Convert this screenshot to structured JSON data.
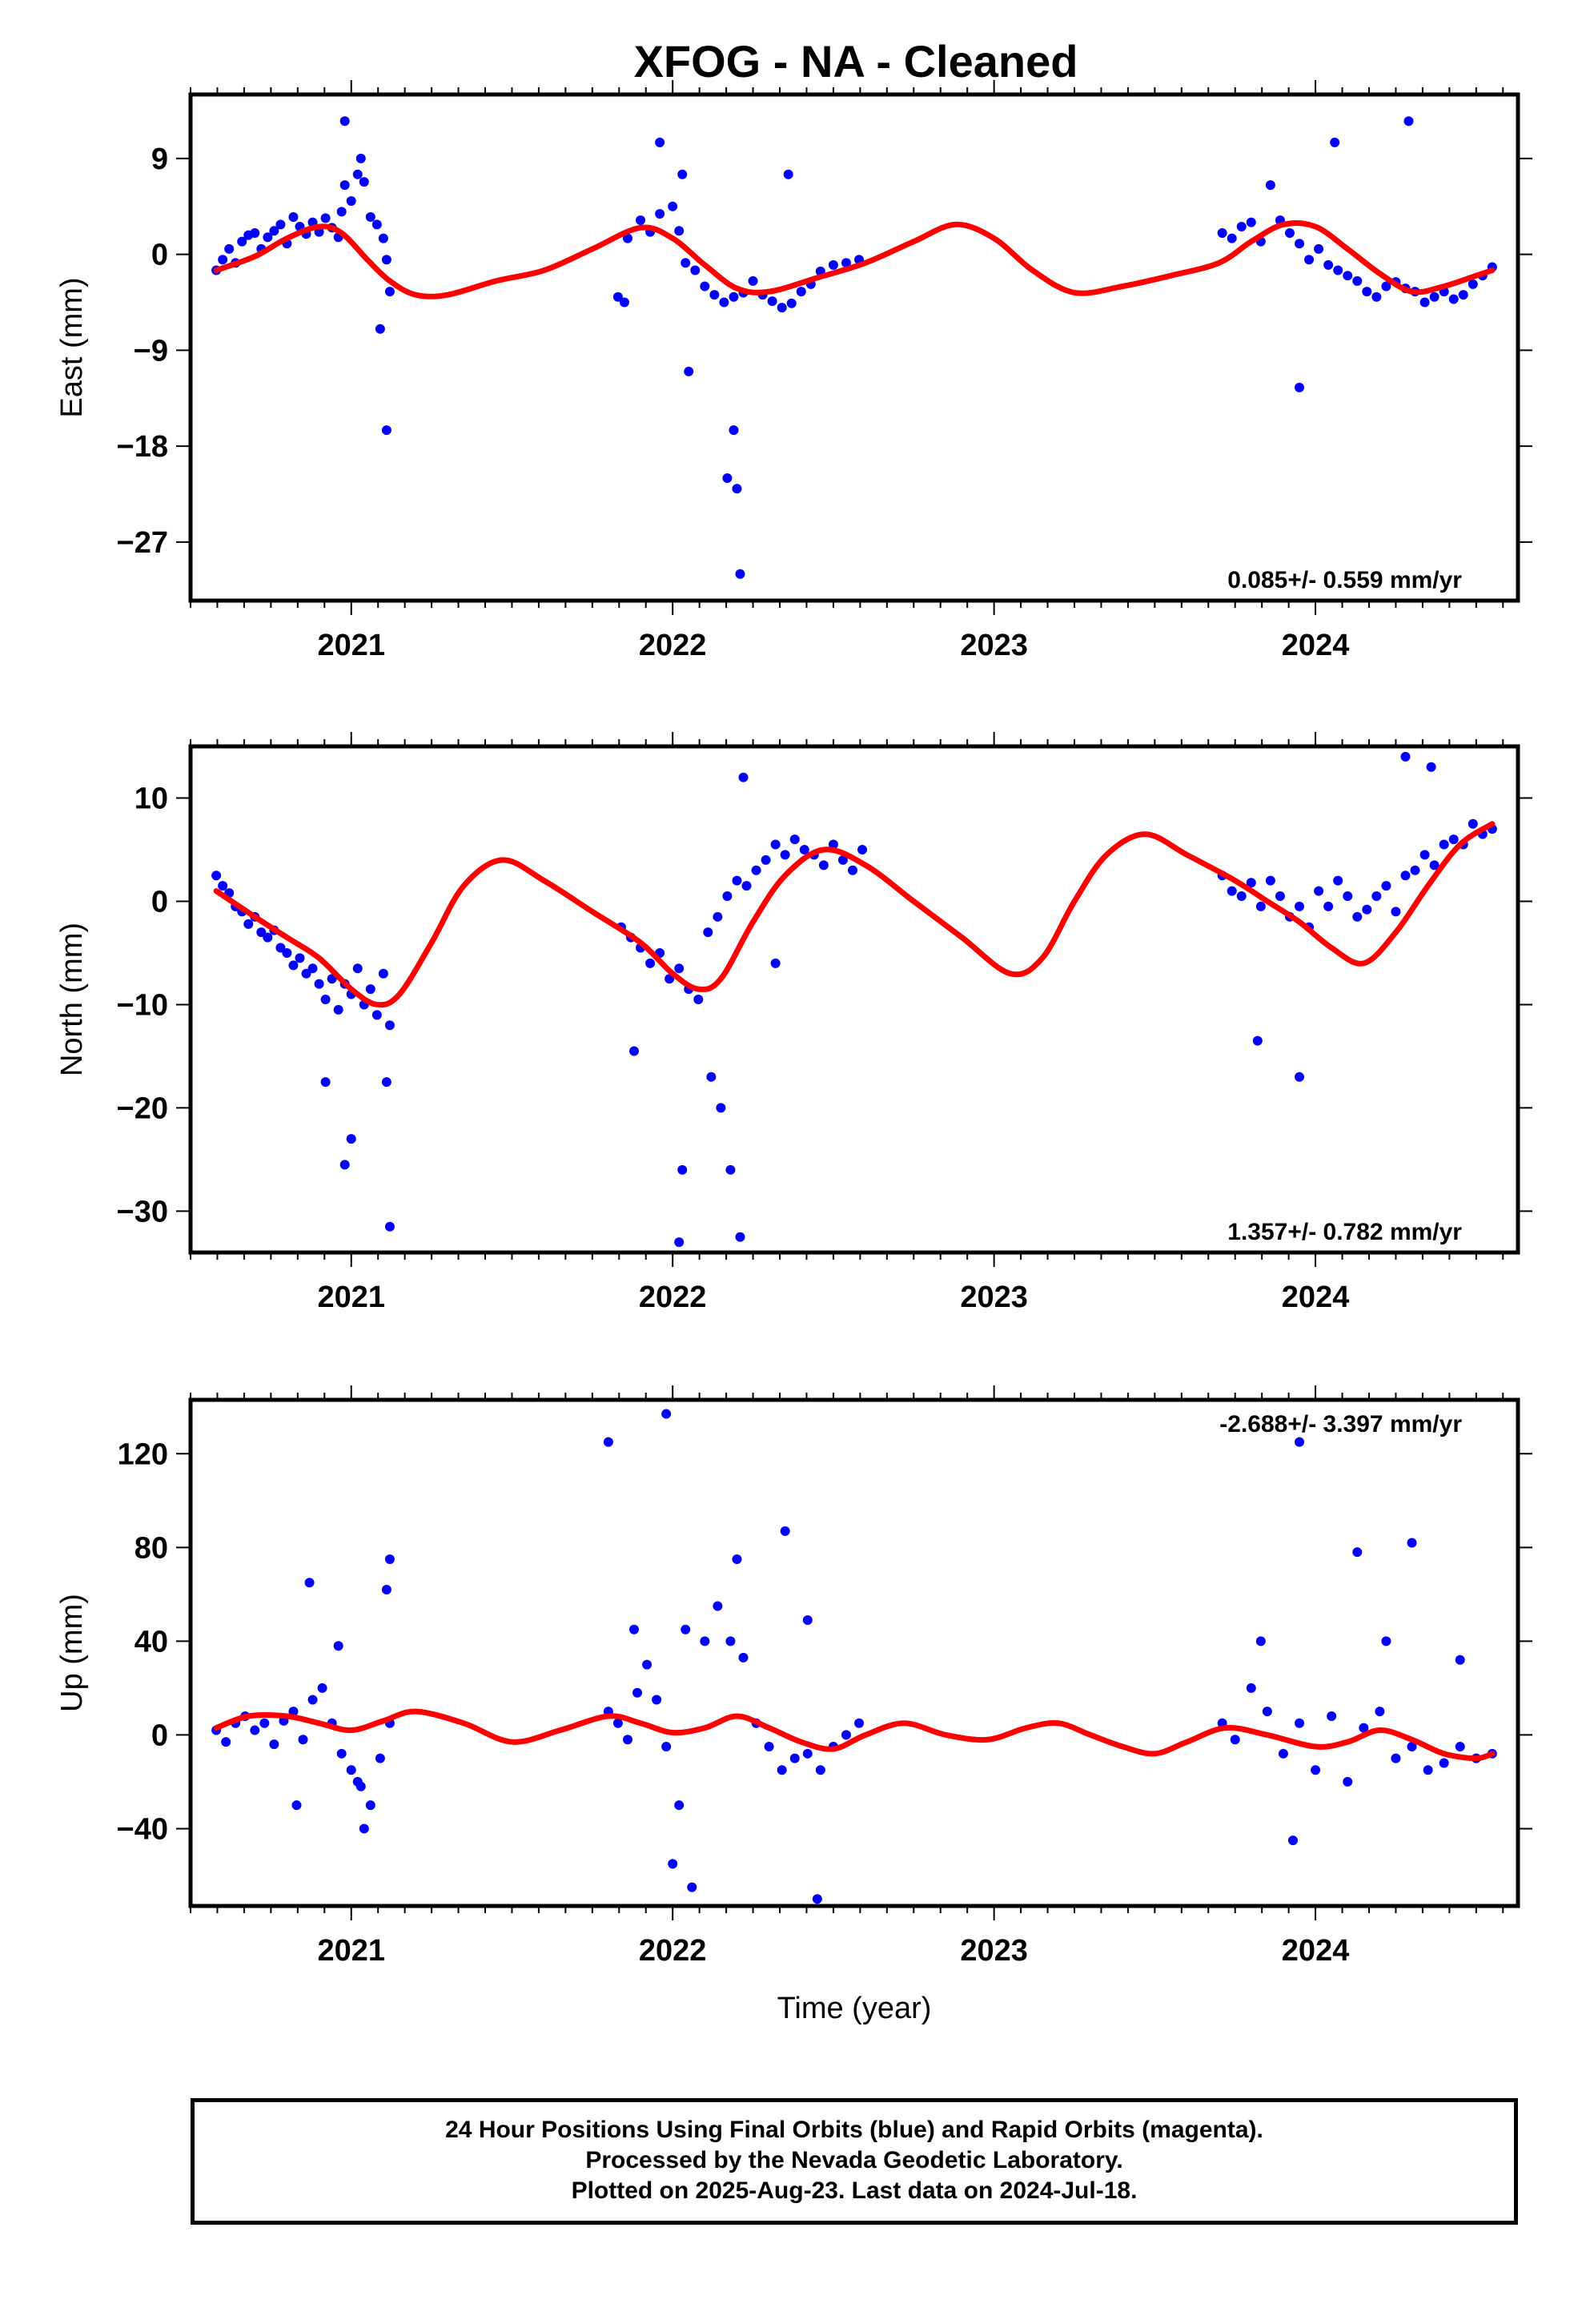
{
  "title": "XFOG  - NA - Cleaned",
  "colors": {
    "points": "#0000ff",
    "fit": "#ff0000",
    "axis": "#000000"
  },
  "footer": {
    "line1": "24 Hour Positions Using Final Orbits (blue) and Rapid Orbits (magenta).",
    "line2": "Processed by the Nevada Geodetic Laboratory.",
    "line3": "Plotted on 2025-Aug-23. Last data on 2024-Jul-18."
  },
  "chart_data": [
    {
      "type": "scatter",
      "title": "",
      "xlabel": "",
      "ylabel": "East (mm)",
      "xlim": [
        2020.5,
        2024.63
      ],
      "ylim": [
        -32.5,
        15
      ],
      "xticks": [
        2021,
        2022,
        2023,
        2024
      ],
      "xtick_labels": [
        "2021",
        "2022",
        "2023",
        "2024"
      ],
      "yticks": [
        9,
        0,
        -9,
        -18,
        -27
      ],
      "ytick_labels": [
        "9",
        "0",
        "−9",
        "−18",
        "−27"
      ],
      "rate_text": "0.085+/- 0.559 mm/yr",
      "rate_position": "bottom-right",
      "series": [
        {
          "kind": "points",
          "x": [
            2020.58,
            2020.6,
            2020.62,
            2020.64,
            2020.66,
            2020.68,
            2020.7,
            2020.72,
            2020.74,
            2020.76,
            2020.78,
            2020.8,
            2020.82,
            2020.84,
            2020.86,
            2020.88,
            2020.9,
            2020.92,
            2020.94,
            2020.96,
            2020.97,
            2020.98,
            2021.0,
            2021.02,
            2021.04,
            2021.06,
            2021.08,
            2021.1,
            2021.11,
            2021.12,
            2020.98,
            2021.03,
            2021.09,
            2021.11,
            2021.83,
            2021.86,
            2021.9,
            2021.93,
            2021.96,
            2022.0,
            2022.02,
            2022.04,
            2022.07,
            2022.1,
            2022.13,
            2022.16,
            2022.19,
            2022.22,
            2022.25,
            2022.28,
            2022.31,
            2022.34,
            2022.37,
            2022.4,
            2022.43,
            2022.46,
            2022.5,
            2022.54,
            2022.58,
            2021.96,
            2022.03,
            2022.05,
            2022.17,
            2022.19,
            2022.2,
            2022.21,
            2021.85,
            2022.36,
            2023.71,
            2023.74,
            2023.77,
            2023.8,
            2023.83,
            2023.86,
            2023.89,
            2023.92,
            2023.95,
            2023.98,
            2024.01,
            2024.04,
            2024.07,
            2024.1,
            2024.13,
            2024.16,
            2024.19,
            2024.22,
            2024.25,
            2024.28,
            2024.31,
            2024.34,
            2024.37,
            2024.4,
            2024.43,
            2024.46,
            2024.49,
            2024.52,
            2024.55,
            2023.95,
            2024.06,
            2024.29
          ],
          "y": [
            -1.5,
            -0.5,
            0.5,
            -0.8,
            1.2,
            1.8,
            2.0,
            0.5,
            1.6,
            2.2,
            2.8,
            1.0,
            3.5,
            2.6,
            1.9,
            3.0,
            2.1,
            3.4,
            2.5,
            1.6,
            4.0,
            6.5,
            5.0,
            7.5,
            6.8,
            3.5,
            2.8,
            1.5,
            -0.5,
            -3.5,
            12.5,
            9.0,
            -7.0,
            -16.5,
            -4.0,
            1.5,
            3.2,
            2.1,
            3.8,
            4.5,
            2.2,
            -0.8,
            -1.5,
            -3.0,
            -3.8,
            -4.5,
            -4.0,
            -3.6,
            -2.5,
            -3.8,
            -4.4,
            -5.0,
            -4.6,
            -3.5,
            -2.8,
            -1.6,
            -1.0,
            -0.8,
            -0.5,
            10.5,
            7.5,
            -11.0,
            -21.0,
            -16.5,
            -22.0,
            -30.0,
            -4.5,
            7.5,
            2.0,
            1.5,
            2.6,
            3.0,
            1.2,
            6.5,
            3.2,
            2.0,
            1.0,
            -0.5,
            0.5,
            -1.0,
            -1.5,
            -2.0,
            -2.5,
            -3.5,
            -4.0,
            -3.0,
            -2.6,
            -3.2,
            -3.5,
            -4.5,
            -4.0,
            -3.5,
            -4.2,
            -3.8,
            -2.8,
            -2.0,
            -1.2,
            -12.5,
            10.5,
            12.5
          ]
        },
        {
          "kind": "fit",
          "x": [
            2020.58,
            2020.7,
            2020.8,
            2020.9,
            2020.97,
            2021.05,
            2021.12,
            2021.2,
            2021.3,
            2021.45,
            2021.6,
            2021.75,
            2021.9,
            2022.0,
            2022.1,
            2022.2,
            2022.3,
            2022.45,
            2022.6,
            2022.75,
            2022.88,
            2023.0,
            2023.12,
            2023.25,
            2023.4,
            2023.55,
            2023.7,
            2023.8,
            2023.9,
            2024.0,
            2024.1,
            2024.2,
            2024.3,
            2024.4,
            2024.5,
            2024.55
          ],
          "y": [
            -1.5,
            -0.2,
            1.5,
            2.6,
            2.0,
            -0.5,
            -2.5,
            -3.8,
            -3.8,
            -2.5,
            -1.5,
            0.5,
            2.5,
            1.5,
            -1.0,
            -3.2,
            -3.5,
            -2.2,
            -0.8,
            1.2,
            2.8,
            1.5,
            -1.5,
            -3.6,
            -3.0,
            -2.0,
            -0.8,
            1.2,
            2.8,
            2.6,
            0.5,
            -1.8,
            -3.5,
            -3.0,
            -2.0,
            -1.5
          ]
        }
      ]
    },
    {
      "type": "scatter",
      "title": "",
      "xlabel": "",
      "ylabel": "North (mm)",
      "xlim": [
        2020.5,
        2024.63
      ],
      "ylim": [
        -34,
        15
      ],
      "xticks": [
        2021,
        2022,
        2023,
        2024
      ],
      "xtick_labels": [
        "2021",
        "2022",
        "2023",
        "2024"
      ],
      "yticks": [
        10,
        0,
        -10,
        -20,
        -30
      ],
      "ytick_labels": [
        "10",
        "0",
        "−10",
        "−20",
        "−30"
      ],
      "rate_text": "1.357+/- 0.782 mm/yr",
      "rate_position": "bottom-right",
      "series": [
        {
          "kind": "points",
          "x": [
            2020.58,
            2020.6,
            2020.62,
            2020.64,
            2020.66,
            2020.68,
            2020.7,
            2020.72,
            2020.74,
            2020.76,
            2020.78,
            2020.8,
            2020.82,
            2020.84,
            2020.86,
            2020.88,
            2020.9,
            2020.92,
            2020.94,
            2020.96,
            2020.98,
            2021.0,
            2021.02,
            2021.04,
            2021.06,
            2021.08,
            2021.1,
            2021.12,
            2020.92,
            2020.98,
            2021.0,
            2021.11,
            2021.12,
            2021.84,
            2021.87,
            2021.9,
            2021.93,
            2021.96,
            2021.99,
            2022.02,
            2022.05,
            2022.08,
            2022.11,
            2022.14,
            2022.17,
            2022.2,
            2022.23,
            2022.26,
            2022.29,
            2022.32,
            2022.35,
            2022.38,
            2022.41,
            2022.44,
            2022.47,
            2022.5,
            2022.53,
            2022.56,
            2022.59,
            2022.02,
            2022.03,
            2022.12,
            2022.15,
            2022.18,
            2022.21,
            2021.88,
            2022.22,
            2022.32,
            2023.71,
            2023.74,
            2023.77,
            2023.8,
            2023.83,
            2023.86,
            2023.89,
            2023.92,
            2023.95,
            2023.98,
            2024.01,
            2024.04,
            2024.07,
            2024.1,
            2024.13,
            2024.16,
            2024.19,
            2024.22,
            2024.25,
            2024.28,
            2024.31,
            2024.34,
            2024.37,
            2024.4,
            2024.43,
            2024.46,
            2024.49,
            2024.52,
            2024.55,
            2023.82,
            2023.95,
            2024.28,
            2024.36
          ],
          "y": [
            2.5,
            1.5,
            0.8,
            -0.5,
            -1.0,
            -2.2,
            -1.5,
            -3.0,
            -3.5,
            -2.8,
            -4.5,
            -5.0,
            -6.2,
            -5.5,
            -7.0,
            -6.5,
            -8.0,
            -9.5,
            -7.5,
            -10.5,
            -8.0,
            -9.0,
            -6.5,
            -10.0,
            -8.5,
            -11.0,
            -7.0,
            -12.0,
            -17.5,
            -25.5,
            -23.0,
            -17.5,
            -31.5,
            -2.5,
            -3.5,
            -4.5,
            -6.0,
            -5.0,
            -7.5,
            -6.5,
            -8.5,
            -9.5,
            -3.0,
            -1.5,
            0.5,
            2.0,
            1.5,
            3.0,
            4.0,
            5.5,
            4.5,
            6.0,
            5.0,
            4.5,
            3.5,
            5.5,
            4.0,
            3.0,
            5.0,
            -33.0,
            -26.0,
            -17.0,
            -20.0,
            -26.0,
            -32.5,
            -14.5,
            12.0,
            -6.0,
            2.5,
            1.0,
            0.5,
            1.8,
            -0.5,
            2.0,
            0.5,
            -1.5,
            -0.5,
            -2.5,
            1.0,
            -0.5,
            2.0,
            0.5,
            -1.5,
            -0.8,
            0.5,
            1.5,
            -1.0,
            2.5,
            3.0,
            4.5,
            3.5,
            5.5,
            6.0,
            5.5,
            7.5,
            6.5,
            7.0,
            -13.5,
            -17.0,
            14.0,
            13.0
          ]
        },
        {
          "kind": "fit",
          "x": [
            2020.58,
            2020.7,
            2020.8,
            2020.9,
            2021.0,
            2021.08,
            2021.15,
            2021.25,
            2021.35,
            2021.47,
            2021.6,
            2021.75,
            2021.9,
            2022.0,
            2022.08,
            2022.15,
            2022.25,
            2022.35,
            2022.47,
            2022.6,
            2022.75,
            2022.9,
            2023.05,
            2023.15,
            2023.25,
            2023.35,
            2023.47,
            2023.6,
            2023.75,
            2023.85,
            2023.95,
            2024.05,
            2024.15,
            2024.25,
            2024.35,
            2024.45,
            2024.55
          ],
          "y": [
            1.0,
            -1.5,
            -3.5,
            -5.5,
            -8.5,
            -10.0,
            -9.0,
            -4.0,
            1.5,
            4.0,
            2.0,
            -1.0,
            -4.0,
            -7.0,
            -8.5,
            -7.5,
            -2.0,
            2.5,
            5.0,
            3.5,
            0.0,
            -3.5,
            -7.0,
            -5.5,
            0.0,
            4.5,
            6.5,
            4.5,
            2.0,
            0.0,
            -2.0,
            -4.5,
            -6.0,
            -3.0,
            1.5,
            5.5,
            7.5
          ]
        }
      ]
    },
    {
      "type": "scatter",
      "title": "",
      "xlabel": "Time (year)",
      "ylabel": "Up (mm)",
      "xlim": [
        2020.5,
        2024.63
      ],
      "ylim": [
        -73,
        143
      ],
      "xticks": [
        2021,
        2022,
        2023,
        2024
      ],
      "xtick_labels": [
        "2021",
        "2022",
        "2023",
        "2024"
      ],
      "yticks": [
        120,
        80,
        40,
        0,
        -40
      ],
      "ytick_labels": [
        "120",
        "80",
        "40",
        "0",
        "−40"
      ],
      "rate_text": "-2.688+/- 3.397 mm/yr",
      "rate_position": "top-right",
      "series": [
        {
          "kind": "points",
          "x": [
            2020.58,
            2020.61,
            2020.64,
            2020.67,
            2020.7,
            2020.73,
            2020.76,
            2020.79,
            2020.82,
            2020.85,
            2020.88,
            2020.91,
            2020.94,
            2020.97,
            2021.0,
            2021.03,
            2021.06,
            2021.09,
            2021.12,
            2020.83,
            2020.87,
            2020.96,
            2021.02,
            2021.04,
            2021.11,
            2021.12,
            2021.8,
            2021.83,
            2021.86,
            2021.89,
            2021.92,
            2021.95,
            2021.98,
            2021.8,
            2021.88,
            2021.98,
            2022.0,
            2022.02,
            2022.04,
            2022.06,
            2022.1,
            2022.14,
            2022.18,
            2022.22,
            2022.26,
            2022.3,
            2022.34,
            2022.38,
            2022.42,
            2022.46,
            2022.5,
            2022.54,
            2022.58,
            2022.2,
            2022.35,
            2022.42,
            2022.45,
            2023.71,
            2023.75,
            2023.8,
            2023.85,
            2023.9,
            2023.95,
            2024.0,
            2024.05,
            2024.1,
            2024.15,
            2024.2,
            2024.25,
            2024.3,
            2024.35,
            2024.4,
            2024.45,
            2024.5,
            2024.55,
            2023.93,
            2024.13,
            2024.22,
            2024.3,
            2024.45,
            2023.95,
            2023.83
          ],
          "y": [
            2,
            -3,
            5,
            8,
            2,
            5,
            -4,
            6,
            10,
            -2,
            15,
            20,
            5,
            -8,
            -15,
            -22,
            -30,
            -10,
            5,
            -30,
            65,
            38,
            -20,
            -40,
            62,
            75,
            10,
            5,
            -2,
            18,
            30,
            15,
            -5,
            125,
            45,
            137,
            -55,
            -30,
            45,
            -65,
            40,
            55,
            40,
            33,
            5,
            -5,
            -15,
            -10,
            -8,
            -15,
            -5,
            0,
            5,
            75,
            87,
            49,
            -70,
            5,
            -2,
            20,
            10,
            -8,
            5,
            -15,
            8,
            -20,
            3,
            10,
            -10,
            -5,
            -15,
            -12,
            -5,
            -10,
            -8,
            -45,
            78,
            40,
            82,
            32,
            125,
            40
          ]
        },
        {
          "kind": "fit",
          "x": [
            2020.58,
            2020.68,
            2020.8,
            2020.9,
            2021.0,
            2021.1,
            2021.2,
            2021.35,
            2021.5,
            2021.65,
            2021.8,
            2021.9,
            2022.0,
            2022.1,
            2022.2,
            2022.3,
            2022.4,
            2022.5,
            2022.6,
            2022.72,
            2022.85,
            2022.98,
            2023.1,
            2023.2,
            2023.3,
            2023.4,
            2023.5,
            2023.6,
            2023.72,
            2023.85,
            2024.0,
            2024.1,
            2024.2,
            2024.3,
            2024.4,
            2024.5,
            2024.55
          ],
          "y": [
            3,
            8,
            8,
            5,
            2,
            6,
            10,
            5,
            -3,
            2,
            8,
            5,
            1,
            3,
            8,
            3,
            -3,
            -6,
            0,
            5,
            0,
            -2,
            3,
            5,
            0,
            -5,
            -8,
            -3,
            3,
            0,
            -5,
            -3,
            2,
            -2,
            -8,
            -10,
            -8
          ]
        }
      ]
    }
  ]
}
